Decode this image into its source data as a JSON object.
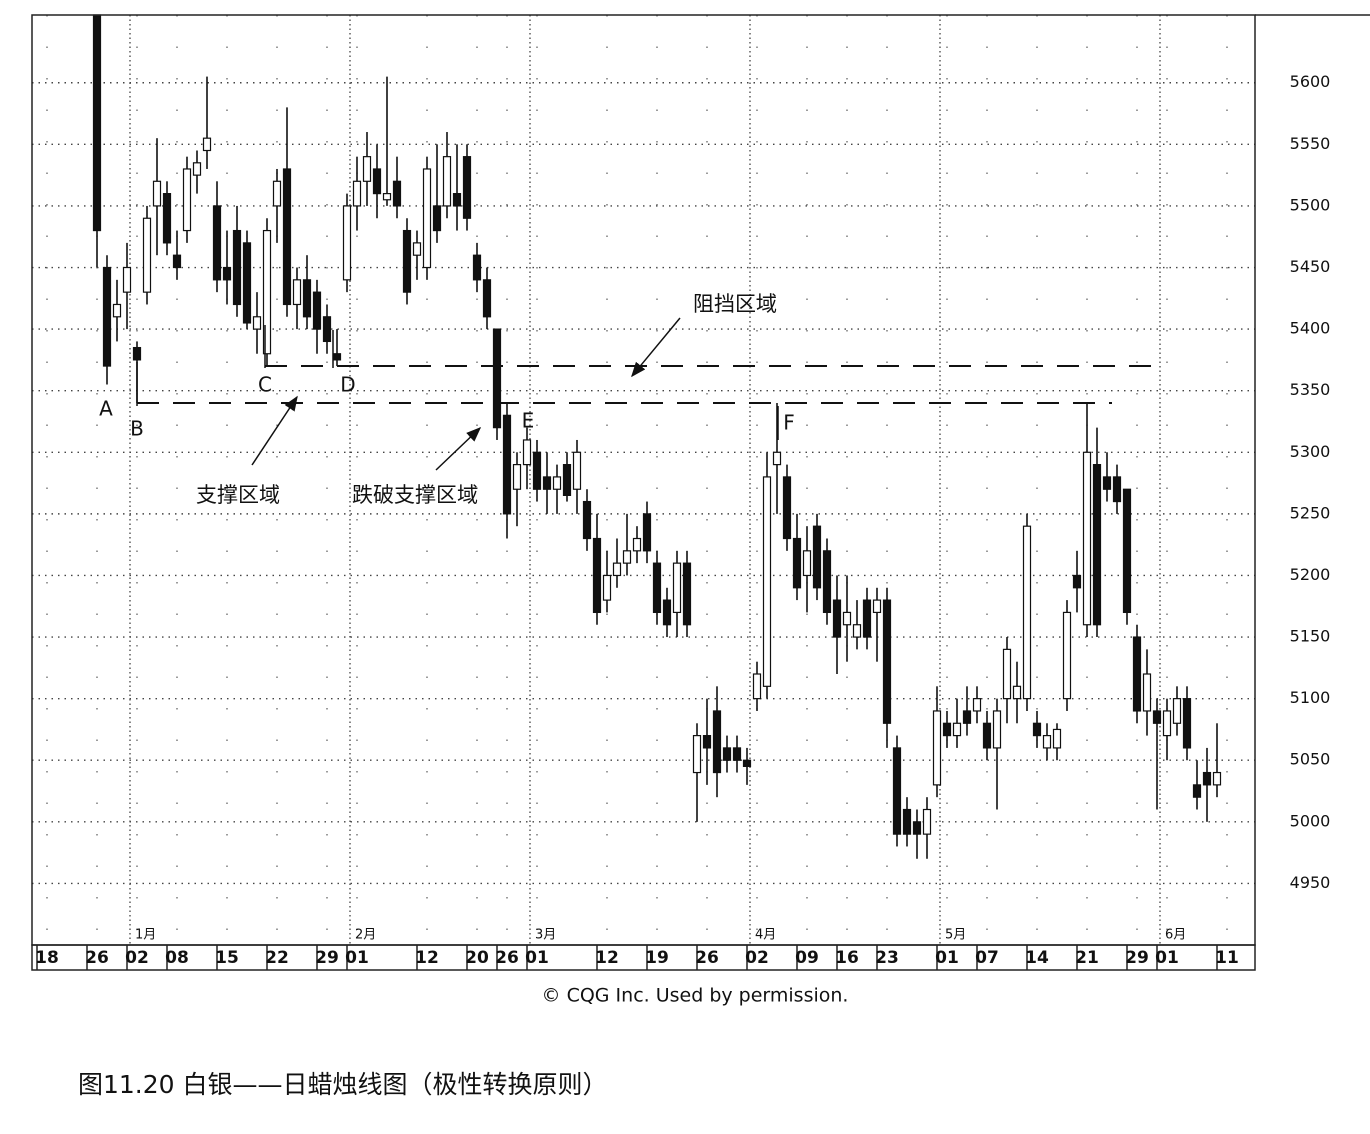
{
  "chart_data": {
    "type": "candlestick",
    "ylim": [
      4900,
      5655
    ],
    "yticks": [
      4950,
      5000,
      5050,
      5100,
      5150,
      5200,
      5250,
      5300,
      5350,
      5400,
      5450,
      5500,
      5550,
      5600
    ],
    "xlim": [
      -6.5,
      115.8
    ],
    "xticks": [
      {
        "value": -5,
        "label": "18"
      },
      {
        "value": 0,
        "label": "26"
      },
      {
        "value": 4,
        "label": "02"
      },
      {
        "value": 8,
        "label": "08"
      },
      {
        "value": 13,
        "label": "15"
      },
      {
        "value": 18,
        "label": "22"
      },
      {
        "value": 23,
        "label": "29"
      },
      {
        "value": 26,
        "label": "01"
      },
      {
        "value": 33,
        "label": "12"
      },
      {
        "value": 38,
        "label": "20"
      },
      {
        "value": 41,
        "label": "26"
      },
      {
        "value": 44,
        "label": "01"
      },
      {
        "value": 51,
        "label": "12"
      },
      {
        "value": 56,
        "label": "19"
      },
      {
        "value": 61,
        "label": "26"
      },
      {
        "value": 66,
        "label": "02"
      },
      {
        "value": 71,
        "label": "09"
      },
      {
        "value": 75,
        "label": "16"
      },
      {
        "value": 79,
        "label": "23"
      },
      {
        "value": 85,
        "label": "01"
      },
      {
        "value": 89,
        "label": "07"
      },
      {
        "value": 94,
        "label": "14"
      },
      {
        "value": 99,
        "label": "21"
      },
      {
        "value": 104,
        "label": "29"
      },
      {
        "value": 107,
        "label": "01"
      },
      {
        "value": 113,
        "label": "11"
      }
    ],
    "month_ticks": [
      {
        "value": 4,
        "label": "1月"
      },
      {
        "value": 26,
        "label": "2月"
      },
      {
        "value": 44,
        "label": "3月"
      },
      {
        "value": 66,
        "label": "4月"
      },
      {
        "value": 85,
        "label": "5月"
      },
      {
        "value": 107,
        "label": "6月"
      }
    ],
    "ohlc": [
      [
        5655,
        5655,
        5450,
        5480
      ],
      [
        5450,
        5460,
        5355,
        5370
      ],
      [
        5410,
        5440,
        5390,
        5420
      ],
      [
        5430,
        5470,
        5400,
        5450
      ],
      [
        5385,
        5390,
        5340,
        5375
      ],
      [
        5430,
        5500,
        5420,
        5490
      ],
      [
        5500,
        5555,
        5460,
        5520
      ],
      [
        5510,
        5520,
        5460,
        5470
      ],
      [
        5460,
        5480,
        5440,
        5450
      ],
      [
        5480,
        5540,
        5470,
        5530
      ],
      [
        5525,
        5545,
        5510,
        5535
      ],
      [
        5545,
        5605,
        5530,
        5555
      ],
      [
        5500,
        5520,
        5430,
        5440
      ],
      [
        5450,
        5480,
        5420,
        5440
      ],
      [
        5480,
        5500,
        5410,
        5420
      ],
      [
        5470,
        5480,
        5400,
        5405
      ],
      [
        5400,
        5430,
        5380,
        5410
      ],
      [
        5380,
        5490,
        5370,
        5480
      ],
      [
        5500,
        5530,
        5470,
        5520
      ],
      [
        5530,
        5580,
        5410,
        5420
      ],
      [
        5420,
        5450,
        5400,
        5440
      ],
      [
        5440,
        5460,
        5400,
        5410
      ],
      [
        5430,
        5440,
        5380,
        5400
      ],
      [
        5410,
        5420,
        5380,
        5390
      ],
      [
        5380,
        5400,
        5370,
        5375
      ],
      [
        5440,
        5510,
        5430,
        5500
      ],
      [
        5500,
        5540,
        5480,
        5520
      ],
      [
        5520,
        5560,
        5500,
        5540
      ],
      [
        5530,
        5550,
        5490,
        5510
      ],
      [
        5505,
        5605,
        5500,
        5510
      ],
      [
        5520,
        5540,
        5490,
        5500
      ],
      [
        5480,
        5490,
        5420,
        5430
      ],
      [
        5460,
        5480,
        5440,
        5470
      ],
      [
        5450,
        5540,
        5440,
        5530
      ],
      [
        5500,
        5550,
        5470,
        5480
      ],
      [
        5500,
        5560,
        5490,
        5540
      ],
      [
        5510,
        5550,
        5480,
        5500
      ],
      [
        5540,
        5550,
        5480,
        5490
      ],
      [
        5460,
        5470,
        5430,
        5440
      ],
      [
        5440,
        5450,
        5400,
        5410
      ],
      [
        5400,
        5400,
        5310,
        5320
      ],
      [
        5330,
        5340,
        5230,
        5250
      ],
      [
        5270,
        5300,
        5240,
        5290
      ],
      [
        5290,
        5320,
        5270,
        5310
      ],
      [
        5300,
        5310,
        5260,
        5270
      ],
      [
        5280,
        5300,
        5250,
        5270
      ],
      [
        5270,
        5290,
        5250,
        5280
      ],
      [
        5290,
        5300,
        5260,
        5265
      ],
      [
        5270,
        5310,
        5250,
        5300
      ],
      [
        5260,
        5270,
        5220,
        5230
      ],
      [
        5230,
        5250,
        5160,
        5170
      ],
      [
        5180,
        5220,
        5170,
        5200
      ],
      [
        5200,
        5230,
        5190,
        5210
      ],
      [
        5210,
        5250,
        5200,
        5220
      ],
      [
        5220,
        5240,
        5210,
        5230
      ],
      [
        5250,
        5260,
        5210,
        5220
      ],
      [
        5210,
        5220,
        5160,
        5170
      ],
      [
        5180,
        5190,
        5150,
        5160
      ],
      [
        5170,
        5220,
        5150,
        5210
      ],
      [
        5210,
        5220,
        5150,
        5160
      ],
      [
        5040,
        5080,
        5000,
        5070
      ],
      [
        5070,
        5100,
        5030,
        5060
      ],
      [
        5090,
        5110,
        5020,
        5040
      ],
      [
        5060,
        5070,
        5040,
        5050
      ],
      [
        5060,
        5070,
        5040,
        5050
      ],
      [
        5050,
        5060,
        5030,
        5045
      ],
      [
        5100,
        5130,
        5090,
        5120
      ],
      [
        5110,
        5300,
        5100,
        5280
      ],
      [
        5290,
        5340,
        5250,
        5300
      ],
      [
        5280,
        5290,
        5220,
        5230
      ],
      [
        5230,
        5250,
        5180,
        5190
      ],
      [
        5200,
        5240,
        5170,
        5220
      ],
      [
        5240,
        5250,
        5180,
        5190
      ],
      [
        5220,
        5230,
        5160,
        5170
      ],
      [
        5180,
        5200,
        5120,
        5150
      ],
      [
        5160,
        5200,
        5130,
        5170
      ],
      [
        5150,
        5180,
        5140,
        5160
      ],
      [
        5180,
        5190,
        5140,
        5150
      ],
      [
        5170,
        5190,
        5130,
        5180
      ],
      [
        5180,
        5190,
        5060,
        5080
      ],
      [
        5060,
        5070,
        4980,
        4990
      ],
      [
        5010,
        5020,
        4980,
        4990
      ],
      [
        5000,
        5010,
        4970,
        4990
      ],
      [
        4990,
        5020,
        4970,
        5010
      ],
      [
        5030,
        5110,
        5020,
        5090
      ],
      [
        5080,
        5090,
        5060,
        5070
      ],
      [
        5070,
        5100,
        5060,
        5080
      ],
      [
        5090,
        5110,
        5070,
        5080
      ],
      [
        5090,
        5110,
        5080,
        5100
      ],
      [
        5080,
        5090,
        5050,
        5060
      ],
      [
        5060,
        5100,
        5010,
        5090
      ],
      [
        5100,
        5150,
        5080,
        5140
      ],
      [
        5100,
        5130,
        5080,
        5110
      ],
      [
        5100,
        5250,
        5090,
        5240
      ],
      [
        5080,
        5090,
        5060,
        5070
      ],
      [
        5060,
        5080,
        5050,
        5070
      ],
      [
        5060,
        5080,
        5050,
        5075
      ],
      [
        5100,
        5180,
        5090,
        5170
      ],
      [
        5200,
        5220,
        5170,
        5190
      ],
      [
        5160,
        5340,
        5150,
        5300
      ],
      [
        5290,
        5320,
        5150,
        5160
      ],
      [
        5280,
        5300,
        5260,
        5270
      ],
      [
        5280,
        5290,
        5250,
        5260
      ],
      [
        5270,
        5270,
        5160,
        5170
      ],
      [
        5150,
        5160,
        5080,
        5090
      ],
      [
        5090,
        5140,
        5070,
        5120
      ],
      [
        5090,
        5100,
        5010,
        5080
      ],
      [
        5070,
        5100,
        5050,
        5090
      ],
      [
        5080,
        5110,
        5070,
        5100
      ],
      [
        5100,
        5110,
        5050,
        5060
      ],
      [
        5030,
        5050,
        5010,
        5020
      ],
      [
        5040,
        5060,
        5000,
        5030
      ],
      [
        5030,
        5080,
        5020,
        5040
      ]
    ],
    "support_level": 5340,
    "resistance_level": 5370,
    "point_labels": [
      "A",
      "B",
      "C",
      "D",
      "E",
      "F"
    ],
    "support_label": "支撑区域",
    "break_label": "跌破支撑区域",
    "resistance_label": "阻挡区域",
    "credit": "© CQG Inc. Used by permission.",
    "caption": "图11.20 白银——日蜡烛线图（极性转换原则）"
  }
}
